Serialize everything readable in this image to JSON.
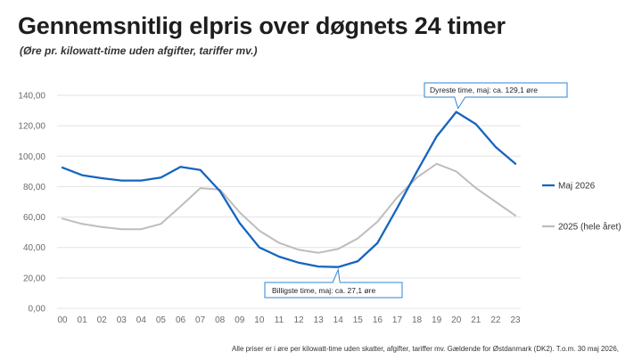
{
  "title": "Gennemsnitlig elpris over døgnets 24 timer",
  "subtitle": "(Øre pr. kilowatt-time uden afgifter, tariffer mv.)",
  "footnote": "Alle priser er i øre per kilowatt-time uden skatter, afgifter, tariffer mv. Gældende for Østdanmark (DK2). T.o.m. 30 maj 2026,",
  "colors": {
    "series_2026": "#1565c0",
    "series_2025": "#bdbdbd",
    "grid": "#e3e3e3",
    "callout_border": "#2e86d6"
  },
  "chart_data": {
    "type": "line",
    "title": "Gennemsnitlig elpris over døgnets 24 timer",
    "subtitle": "(Øre pr. kilowatt-time uden afgifter, tariffer mv.)",
    "xlabel": "",
    "ylabel": "",
    "categories": [
      "00",
      "01",
      "02",
      "03",
      "04",
      "05",
      "06",
      "07",
      "08",
      "09",
      "10",
      "11",
      "12",
      "13",
      "14",
      "15",
      "16",
      "17",
      "18",
      "19",
      "20",
      "21",
      "22",
      "23"
    ],
    "ylim": [
      0,
      140
    ],
    "yticks": [
      "0,00",
      "20,00",
      "40,00",
      "60,00",
      "80,00",
      "100,00",
      "120,00",
      "140,00"
    ],
    "grid": true,
    "legend_placement": "right",
    "series": [
      {
        "name": "Maj 2026",
        "color": "#1565c0",
        "values": [
          92.5,
          87.5,
          85.5,
          84,
          84,
          86,
          93,
          91,
          77,
          56,
          40,
          34,
          30,
          27.5,
          27.1,
          31,
          43,
          66,
          90,
          113,
          129.1,
          121,
          106,
          95
        ]
      },
      {
        "name": "2025 (hele året)",
        "color": "#bdbdbd",
        "values": [
          59,
          55.5,
          53.5,
          52,
          52,
          55.5,
          67,
          79,
          78,
          63,
          51,
          43,
          38.5,
          36.5,
          39,
          46,
          57,
          73,
          86,
          95,
          90,
          79,
          70,
          61
        ]
      }
    ],
    "annotations": [
      {
        "text": "Dyreste time, maj: ca. 129,1 øre",
        "x": "20",
        "y": 129.1
      },
      {
        "text": "Billigste time, maj: ca. 27,1 øre",
        "x": "14",
        "y": 27.1
      }
    ]
  }
}
